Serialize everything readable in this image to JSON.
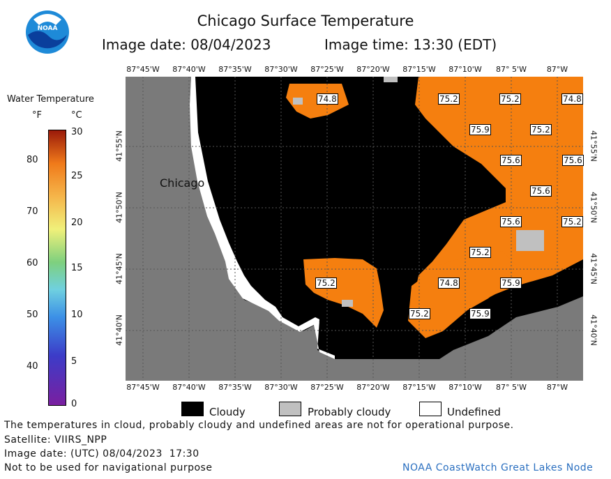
{
  "header": {
    "title": "Chicago Surface Temperature",
    "image_date_label": "Image date: 08/04/2023",
    "image_time_label": "Image time: 13:30 (EDT)"
  },
  "logo": {
    "text": "NOAA"
  },
  "colorbar": {
    "title": "Water Temperature",
    "unit_f": "°F",
    "unit_c": "°C",
    "f_ticks": [
      "80",
      "70",
      "60",
      "50",
      "40"
    ],
    "c_ticks": [
      "30",
      "25",
      "20",
      "15",
      "10",
      "5",
      "0"
    ]
  },
  "map": {
    "lon_labels": [
      "87°45'W",
      "87°40'W",
      "87°35'W",
      "87°30'W",
      "87°25'W",
      "87°20'W",
      "87°15'W",
      "87°10'W",
      "87° 5'W",
      "87°W"
    ],
    "lat_labels": [
      "41°55'N",
      "41°50'N",
      "41°45'N",
      "41°40'N"
    ],
    "city_label": "Chicago",
    "temperature_labels": [
      "74.8",
      "75.2",
      "75.2",
      "74.8",
      "75.9",
      "75.2",
      "75.6",
      "75.6",
      "75.6",
      "75.6",
      "75.2",
      "75.2",
      "75.2",
      "74.8",
      "75.9",
      "75.2",
      "75.9"
    ],
    "colors": {
      "land": "#7a7a7a",
      "cloud": "#000000",
      "water": "#f57f0f",
      "probably_cloudy": "#c0c0c0",
      "undefined": "#ffffff"
    }
  },
  "legend": {
    "cloudy": "Cloudy",
    "probably_cloudy": "Probably cloudy",
    "undefined": "Undefined"
  },
  "footer": {
    "disclaimer": "The temperatures in cloud, probably cloudy and undefined areas are not for operational purpose.",
    "satellite": "Satellite: VIIRS_NPP",
    "utc_date": "Image date: (UTC) 08/04/2023  17:30",
    "nav_warning": "Not to be used for navigational purpose",
    "credit": "NOAA CoastWatch Great Lakes Node"
  }
}
